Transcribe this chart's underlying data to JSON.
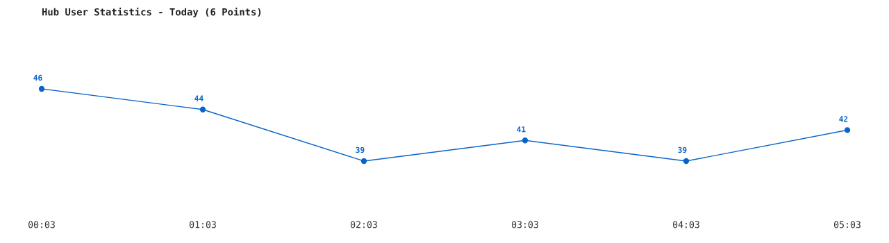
{
  "chart_data": {
    "type": "line",
    "title": "Hub User Statistics - Today (6 Points)",
    "categories": [
      "00:03",
      "01:03",
      "02:03",
      "03:03",
      "04:03",
      "05:03"
    ],
    "series": [
      {
        "color": "#0a64c8",
        "values": [
          46,
          44,
          39,
          41,
          39,
          42
        ]
      }
    ],
    "data_labels": true,
    "marker": "circle",
    "grid": false,
    "legend": false
  }
}
